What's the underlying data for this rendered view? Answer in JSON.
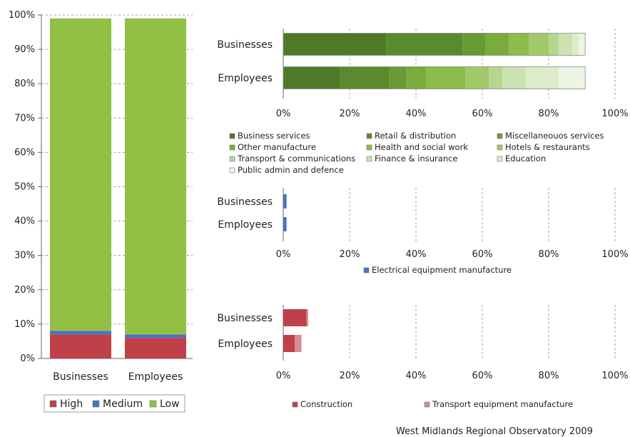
{
  "source": "West Midlands Regional Observatory 2009",
  "chart_data": [
    {
      "type": "bar",
      "stacked": true,
      "orientation": "vertical",
      "categories": [
        "Businesses",
        "Employees"
      ],
      "series": [
        {
          "name": "High",
          "values": [
            7,
            6
          ],
          "color": "#c0404a"
        },
        {
          "name": "Medium",
          "values": [
            1,
            1
          ],
          "color": "#4a72c4"
        },
        {
          "name": "Low",
          "values": [
            91,
            92
          ],
          "color": "#92c045"
        }
      ],
      "ylim": [
        0,
        100
      ],
      "yticks": [
        "0%",
        "10%",
        "20%",
        "30%",
        "40%",
        "50%",
        "60%",
        "70%",
        "80%",
        "90%",
        "100%"
      ],
      "grid": true,
      "legend": "bottom"
    },
    {
      "type": "bar",
      "stacked": true,
      "orientation": "horizontal",
      "categories": [
        "Businesses",
        "Employees"
      ],
      "series": [
        {
          "name": "Business services",
          "values": [
            31,
            17
          ],
          "color": "#4e7a28"
        },
        {
          "name": "Retail & distribution",
          "values": [
            23,
            15
          ],
          "color": "#5b8a2e"
        },
        {
          "name": "Miscellaneouos services",
          "values": [
            7,
            5
          ],
          "color": "#6a9a35"
        },
        {
          "name": "Other manufacture",
          "values": [
            7,
            6
          ],
          "color": "#7aab3d"
        },
        {
          "name": "Health and social work",
          "values": [
            6,
            12
          ],
          "color": "#8cbc4a"
        },
        {
          "name": "Hotels & restaurants",
          "values": [
            6,
            7
          ],
          "color": "#a1c96a"
        },
        {
          "name": "Transport & communications",
          "values": [
            3,
            4
          ],
          "color": "#b6d68e"
        },
        {
          "name": "Finance & insurance",
          "values": [
            4,
            7
          ],
          "color": "#cbe3b0"
        },
        {
          "name": "Education",
          "values": [
            2,
            10
          ],
          "color": "#dcecc9"
        },
        {
          "name": "Public admin and defence",
          "values": [
            2,
            8
          ],
          "color": "#ecf5e2"
        }
      ],
      "xlim": [
        0,
        100
      ],
      "xticks": [
        "0%",
        "20%",
        "40%",
        "60%",
        "80%",
        "100%"
      ],
      "grid": true,
      "legend": "bottom"
    },
    {
      "type": "bar",
      "stacked": true,
      "orientation": "horizontal",
      "categories": [
        "Businesses",
        "Employees"
      ],
      "series": [
        {
          "name": "Electrical equipment manufacture",
          "values": [
            1,
            1
          ],
          "color": "#4a72c4"
        }
      ],
      "xlim": [
        0,
        100
      ],
      "xticks": [
        "0%",
        "20%",
        "40%",
        "60%",
        "80%",
        "100%"
      ],
      "grid": true,
      "legend": "bottom"
    },
    {
      "type": "bar",
      "stacked": true,
      "orientation": "horizontal",
      "categories": [
        "Businesses",
        "Employees"
      ],
      "series": [
        {
          "name": "Construction",
          "values": [
            7,
            3.5
          ],
          "color": "#c0404a"
        },
        {
          "name": "Transport equipment manufacture",
          "values": [
            0.5,
            2
          ],
          "color": "#d98a90"
        }
      ],
      "xlim": [
        0,
        100
      ],
      "xticks": [
        "0%",
        "20%",
        "40%",
        "60%",
        "80%",
        "100%"
      ],
      "grid": true,
      "legend": "bottom"
    }
  ]
}
